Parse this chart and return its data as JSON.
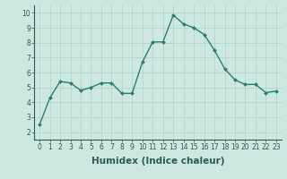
{
  "x": [
    0,
    1,
    2,
    3,
    4,
    5,
    6,
    7,
    8,
    9,
    10,
    11,
    12,
    13,
    14,
    15,
    16,
    17,
    18,
    19,
    20,
    21,
    22,
    23
  ],
  "y": [
    2.5,
    4.3,
    5.4,
    5.3,
    4.8,
    5.0,
    5.3,
    5.3,
    4.6,
    4.6,
    6.7,
    8.05,
    8.05,
    9.85,
    9.25,
    9.0,
    8.55,
    7.5,
    6.25,
    5.5,
    5.2,
    5.2,
    4.65,
    4.75
  ],
  "line_color": "#2d7d6e",
  "marker": "D",
  "marker_size": 2,
  "line_width": 1.0,
  "bg_color": "#cce8e0",
  "grid_color": "#aed0c8",
  "xlabel": "Humidex (Indice chaleur)",
  "xlim": [
    -0.5,
    23.5
  ],
  "ylim": [
    1.5,
    10.5
  ],
  "yticks": [
    2,
    3,
    4,
    5,
    6,
    7,
    8,
    9,
    10
  ],
  "xticks": [
    0,
    1,
    2,
    3,
    4,
    5,
    6,
    7,
    8,
    9,
    10,
    11,
    12,
    13,
    14,
    15,
    16,
    17,
    18,
    19,
    20,
    21,
    22,
    23
  ],
  "tick_label_fontsize": 5.5,
  "xlabel_fontsize": 7.5,
  "tick_color": "#2d5a52",
  "spine_color": "#2d5a52"
}
